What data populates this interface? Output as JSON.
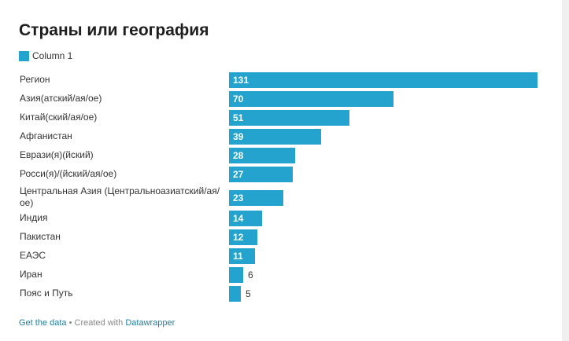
{
  "title": "Страны или география",
  "colors": {
    "bar": "#23a3cd",
    "text": "#333333",
    "link": "#1d81a2"
  },
  "chart_data": {
    "type": "bar",
    "orientation": "horizontal",
    "title": "Страны или география",
    "legend": [
      {
        "name": "Column 1",
        "color": "#23a3cd"
      }
    ],
    "categories": [
      "Регион",
      "Азия(атский/ая/ое)",
      "Китай(ский/ая/ое)",
      "Афганистан",
      "Еврази(я)(йский)",
      "Росси(я)/(йский/ая/ое)",
      "Центральная Азия (Центральноазиатский/ая/ое)",
      "Индия",
      "Пакистан",
      "ЕАЭС",
      "Иран",
      "Пояс и Путь"
    ],
    "series": [
      {
        "name": "Column 1",
        "values": [
          131,
          70,
          51,
          39,
          28,
          27,
          23,
          14,
          12,
          11,
          6,
          5
        ]
      }
    ],
    "xlim": [
      0,
      131
    ]
  },
  "footer": {
    "get_data": "Get the data",
    "created_with": " • Created with ",
    "tool": "Datawrapper"
  }
}
